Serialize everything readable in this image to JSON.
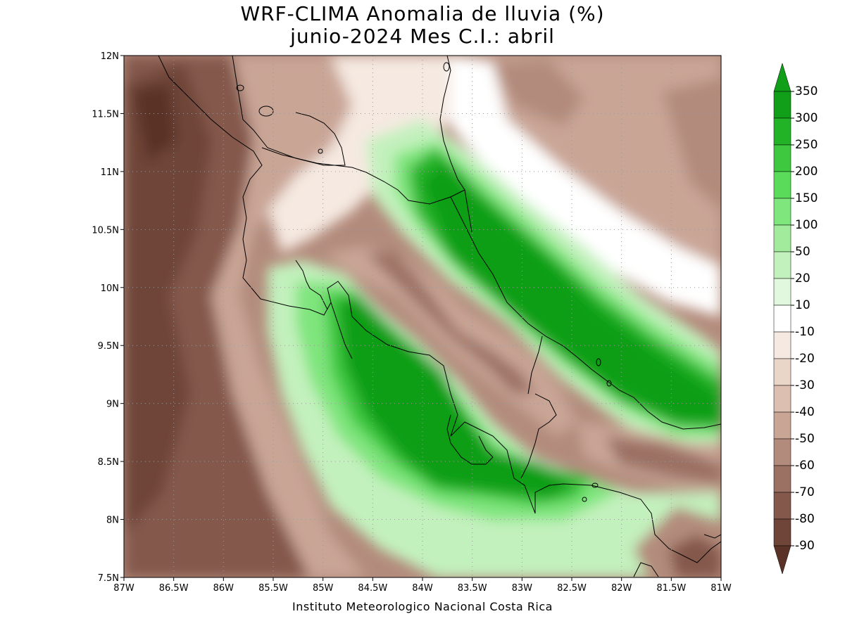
{
  "title": {
    "line1": "WRF-CLIMA Anomalia de lluvia (%)",
    "line2": "junio-2024 Mes C.I.: abril"
  },
  "credit": "Instituto Meteorologico Nacional Costa Rica",
  "axes": {
    "lon_ticks": [
      "87W",
      "86.5W",
      "86W",
      "85.5W",
      "85W",
      "84.5W",
      "84W",
      "83.5W",
      "83W",
      "82.5W",
      "82W",
      "81.5W",
      "81W"
    ],
    "lat_ticks": [
      "12N",
      "11.5N",
      "11N",
      "10.5N",
      "10N",
      "9.5N",
      "9N",
      "8.5N",
      "8N",
      "7.5N"
    ],
    "lon_range": [
      -87,
      -81
    ],
    "lat_range": [
      7.5,
      12
    ],
    "grid": "dotted"
  },
  "colorbar": {
    "labels": [
      "350",
      "300",
      "250",
      "200",
      "150",
      "100",
      "50",
      "20",
      "10",
      "-10",
      "-20",
      "-30",
      "-40",
      "-50",
      "-60",
      "-70",
      "-80",
      "-90"
    ],
    "colors": [
      "#119e19",
      "#23b327",
      "#3ec83f",
      "#5adc5a",
      "#7fe57d",
      "#a2eb9d",
      "#c3f1bd",
      "#e2f8de",
      "#ffffff",
      "#f5e9e1",
      "#ead5c9",
      "#dcbfb0",
      "#c9a596",
      "#b38b7c",
      "#9b7163",
      "#84594c",
      "#6e4538",
      "#5a3227"
    ]
  },
  "colors": {
    "land_dry_deep": "#6e4538",
    "green_max": "#119e19"
  }
}
